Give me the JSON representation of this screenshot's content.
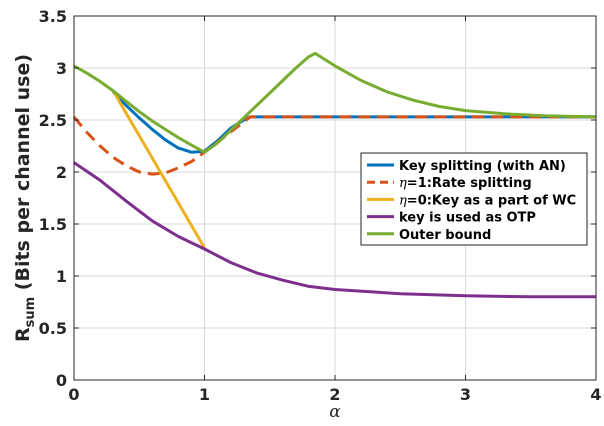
{
  "chart_data": {
    "type": "line",
    "title": "",
    "xlabel": "α",
    "ylabel_main": "R",
    "ylabel_sub": "sum",
    "ylabel_rest": "(Bits per channel use)",
    "xlim": [
      0,
      4
    ],
    "ylim": [
      0,
      3.5
    ],
    "xticks": [
      0,
      1,
      2,
      3,
      4
    ],
    "yticks": [
      0,
      0.5,
      1,
      1.5,
      2,
      2.5,
      3,
      3.5
    ],
    "grid": true,
    "legend_position": "center-right",
    "series": [
      {
        "name": "Key splitting (with AN)",
        "color": "#0072BD",
        "dash": "solid",
        "x": [
          0.3,
          0.4,
          0.5,
          0.6,
          0.7,
          0.8,
          0.9,
          1.0,
          1.1,
          1.2,
          1.3,
          1.35,
          1.6,
          2.0,
          2.5,
          3.0,
          3.5,
          4.0
        ],
        "y": [
          2.77,
          2.64,
          2.52,
          2.41,
          2.31,
          2.23,
          2.19,
          2.2,
          2.3,
          2.42,
          2.5,
          2.53,
          2.53,
          2.53,
          2.53,
          2.53,
          2.53,
          2.53
        ]
      },
      {
        "name": "η=1:Rate splitting",
        "color": "#D95319",
        "dash": "dashed",
        "x": [
          0.0,
          0.1,
          0.2,
          0.3,
          0.4,
          0.5,
          0.6,
          0.7,
          0.8,
          0.9,
          1.0,
          1.35,
          1.6,
          2.0,
          2.5,
          3.0,
          3.5,
          4.0
        ],
        "y": [
          2.53,
          2.38,
          2.25,
          2.14,
          2.06,
          2.0,
          1.98,
          1.99,
          2.04,
          2.1,
          2.19,
          2.53,
          2.53,
          2.53,
          2.53,
          2.53,
          2.53,
          2.53
        ]
      },
      {
        "name": "η=0:Key as a part of WC",
        "color": "#EDB120",
        "dash": "solid",
        "x": [
          0.3,
          1.0
        ],
        "y": [
          2.78,
          1.27
        ]
      },
      {
        "name": "key is used as OTP",
        "color": "#7E2F8E",
        "dash": "solid",
        "x": [
          0.0,
          0.2,
          0.4,
          0.6,
          0.8,
          1.0,
          1.2,
          1.4,
          1.6,
          1.8,
          2.0,
          2.5,
          3.0,
          3.5,
          4.0
        ],
        "y": [
          2.09,
          1.92,
          1.72,
          1.53,
          1.38,
          1.26,
          1.13,
          1.03,
          0.96,
          0.9,
          0.87,
          0.83,
          0.81,
          0.8,
          0.8
        ]
      },
      {
        "name": "Outer bound",
        "color": "#77AC30",
        "dash": "solid",
        "x": [
          0.0,
          0.1,
          0.2,
          0.3,
          0.4,
          0.5,
          0.6,
          0.7,
          0.8,
          0.9,
          1.0,
          1.1,
          1.2,
          1.3,
          1.4,
          1.5,
          1.6,
          1.7,
          1.8,
          1.85,
          1.9,
          2.0,
          2.2,
          2.4,
          2.6,
          2.8,
          3.0,
          3.3,
          3.6,
          4.0
        ],
        "y": [
          3.02,
          2.95,
          2.87,
          2.78,
          2.68,
          2.58,
          2.49,
          2.41,
          2.33,
          2.26,
          2.19,
          2.28,
          2.4,
          2.52,
          2.64,
          2.76,
          2.88,
          3.0,
          3.11,
          3.14,
          3.1,
          3.02,
          2.88,
          2.77,
          2.69,
          2.63,
          2.59,
          2.56,
          2.54,
          2.53
        ]
      }
    ]
  }
}
